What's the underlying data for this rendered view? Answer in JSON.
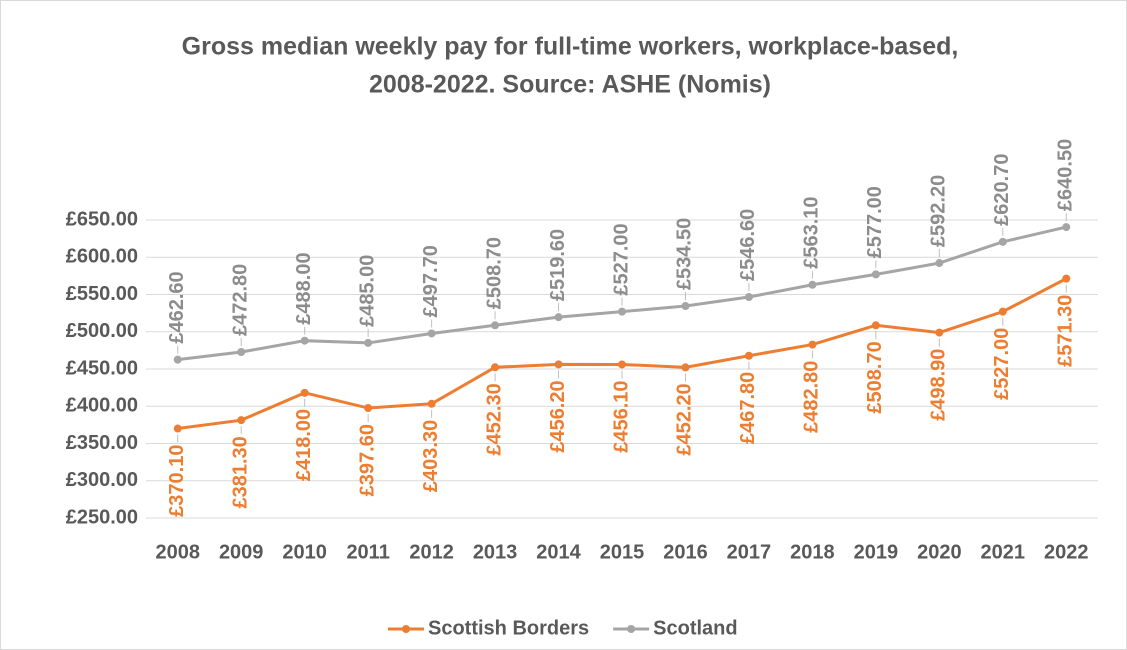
{
  "chart_data": {
    "type": "line",
    "title": [
      "Gross median weekly pay for full-time workers, workplace-based,",
      "2008-2022. Source: ASHE (Nomis)"
    ],
    "categories": [
      "2008",
      "2009",
      "2010",
      "2011",
      "2012",
      "2013",
      "2014",
      "2015",
      "2016",
      "2017",
      "2018",
      "2019",
      "2020",
      "2021",
      "2022"
    ],
    "series": [
      {
        "name": "Scottish Borders",
        "color": "#ED7D31",
        "label_side": "below",
        "values": [
          370.1,
          381.3,
          418,
          397.6,
          403.3,
          452.3,
          456.2,
          456.1,
          452.2,
          467.8,
          482.8,
          508.7,
          498.9,
          527,
          571.3
        ],
        "value_labels": [
          "£370.10",
          "£381.30",
          "£418.00",
          "£397.60",
          "£403.30",
          "£452.30",
          "£456.20",
          "£456.10",
          "£452.20",
          "£467.80",
          "£482.80",
          "£508.70",
          "£498.90",
          "£527.00",
          "£571.30"
        ]
      },
      {
        "name": "Scotland",
        "color": "#A5A5A5",
        "label_side": "above",
        "values": [
          462.6,
          472.8,
          488,
          485,
          497.7,
          508.7,
          519.6,
          527,
          534.5,
          546.6,
          563.1,
          577,
          592.2,
          620.7,
          640.5
        ],
        "value_labels": [
          "£462.60",
          "£472.80",
          "£488.00",
          "£485.00",
          "£497.70",
          "£508.70",
          "£519.60",
          "£527.00",
          "£534.50",
          "£546.60",
          "£563.10",
          "£577.00",
          "£592.20",
          "£620.70",
          "£640.50"
        ]
      }
    ],
    "ylim": [
      250,
      650
    ],
    "yticks": [
      {
        "value": 250,
        "label": "£250.00"
      },
      {
        "value": 300,
        "label": "£300.00"
      },
      {
        "value": 350,
        "label": "£350.00"
      },
      {
        "value": 400,
        "label": "£400.00"
      },
      {
        "value": 450,
        "label": "£450.00"
      },
      {
        "value": 500,
        "label": "£500.00"
      },
      {
        "value": 550,
        "label": "£550.00"
      },
      {
        "value": 600,
        "label": "£600.00"
      },
      {
        "value": 650,
        "label": "£650.00"
      }
    ],
    "grid": true,
    "legend": "bottom"
  }
}
